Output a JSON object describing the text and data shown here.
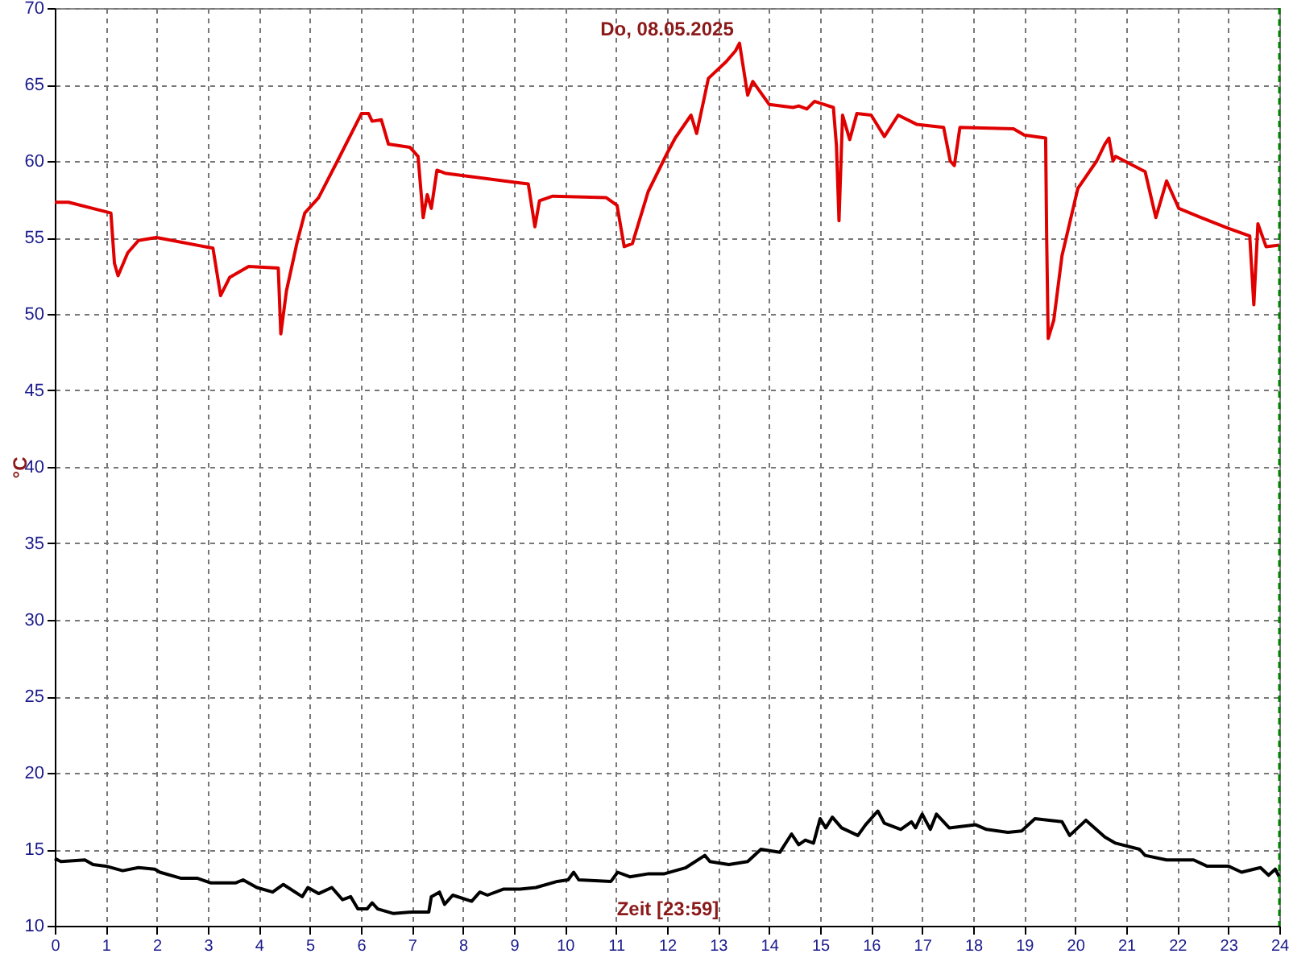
{
  "chart_data": {
    "type": "line",
    "title": "Do, 08.05.2025",
    "xlabel": "Zeit [23:59]",
    "ylabel": "°C",
    "xlim": [
      0,
      24
    ],
    "xticks": [
      0,
      1,
      2,
      3,
      4,
      5,
      6,
      7,
      8,
      9,
      10,
      11,
      12,
      13,
      14,
      15,
      16,
      17,
      18,
      19,
      20,
      21,
      22,
      23,
      24
    ],
    "ylim": [
      10,
      70
    ],
    "yticks": [
      10,
      15,
      20,
      25,
      30,
      35,
      40,
      45,
      50,
      55,
      60,
      65,
      70
    ],
    "grid": true,
    "line_style": "solid",
    "marker": "none",
    "ref_lines": [
      {
        "axis": "x",
        "value": 24,
        "label": null,
        "color": "#008000",
        "line_style": "dashed"
      }
    ],
    "series": [
      {
        "color": "#e00000",
        "x": [
          0,
          0.27,
          1.1,
          1.17,
          1.24,
          1.43,
          1.64,
          1.99,
          3.1,
          3.25,
          3.43,
          3.8,
          4.38,
          4.43,
          4.54,
          4.75,
          4.9,
          5.17,
          5.54,
          6.01,
          6.15,
          6.22,
          6.4,
          6.54,
          6.96,
          7.12,
          7.22,
          7.3,
          7.38,
          7.49,
          7.65,
          9.02,
          9.28,
          9.41,
          9.5,
          9.76,
          10.81,
          11.02,
          11.16,
          11.32,
          11.63,
          12.0,
          12.16,
          12.47,
          12.58,
          12.81,
          13.16,
          13.34,
          13.42,
          13.58,
          13.68,
          14.0,
          14.47,
          14.58,
          14.74,
          14.89,
          15.26,
          15.32,
          15.37,
          15.44,
          15.58,
          15.72,
          16.0,
          16.26,
          16.53,
          16.89,
          17.42,
          17.55,
          17.63,
          17.74,
          18.79,
          19.0,
          19.42,
          19.44,
          19.47,
          19.58,
          19.74,
          20.05,
          20.42,
          20.58,
          20.66,
          20.74,
          20.79,
          21.37,
          21.58,
          21.79,
          22.03,
          22.47,
          23.0,
          23.42,
          23.5,
          23.58,
          23.74,
          24.0
        ],
        "values": [
          57.3,
          57.3,
          56.6,
          53.3,
          52.5,
          54.0,
          54.8,
          55.0,
          54.3,
          51.2,
          52.4,
          53.1,
          53.0,
          48.7,
          51.5,
          54.7,
          56.6,
          57.6,
          60.0,
          63.1,
          63.1,
          62.6,
          62.7,
          61.1,
          60.9,
          60.3,
          56.3,
          57.8,
          56.9,
          59.4,
          59.2,
          58.6,
          58.5,
          55.7,
          57.4,
          57.7,
          57.6,
          57.1,
          54.4,
          54.6,
          58.0,
          60.5,
          61.5,
          63.0,
          61.8,
          65.4,
          66.5,
          67.2,
          67.7,
          64.3,
          65.2,
          63.7,
          63.5,
          63.6,
          63.4,
          63.9,
          63.5,
          61.0,
          56.1,
          63.0,
          61.4,
          63.1,
          63.0,
          61.6,
          63.0,
          62.4,
          62.2,
          60.0,
          59.7,
          62.2,
          62.1,
          61.7,
          61.5,
          55.0,
          48.4,
          49.6,
          53.8,
          58.2,
          60.0,
          61.1,
          61.5,
          60.0,
          60.3,
          59.3,
          56.3,
          58.7,
          56.9,
          56.3,
          55.6,
          55.1,
          50.6,
          55.9,
          54.4,
          54.5
        ]
      },
      {
        "color": "#000000",
        "x": [
          0,
          0.12,
          0.59,
          0.75,
          1.0,
          1.33,
          1.64,
          1.96,
          2.06,
          2.48,
          2.8,
          3.06,
          3.54,
          3.69,
          3.96,
          4.27,
          4.48,
          4.85,
          4.96,
          5.17,
          5.43,
          5.64,
          5.8,
          5.94,
          6.12,
          6.22,
          6.33,
          6.64,
          7.01,
          7.33,
          7.38,
          7.54,
          7.64,
          7.8,
          8.17,
          8.33,
          8.48,
          8.8,
          9.12,
          9.43,
          9.85,
          10.06,
          10.17,
          10.27,
          10.9,
          11.03,
          11.27,
          11.64,
          11.95,
          12.37,
          12.74,
          12.84,
          13.21,
          13.58,
          13.84,
          14.21,
          14.44,
          14.58,
          14.71,
          14.87,
          15.0,
          15.11,
          15.24,
          15.42,
          15.74,
          15.89,
          16.13,
          16.26,
          16.58,
          16.79,
          16.87,
          17.0,
          17.16,
          17.28,
          17.53,
          18.05,
          18.26,
          18.68,
          18.95,
          19.21,
          19.74,
          19.89,
          20.21,
          20.58,
          20.79,
          21.26,
          21.37,
          21.79,
          22.32,
          22.58,
          23.0,
          23.26,
          23.63,
          23.79,
          23.92,
          24.0
        ],
        "values": [
          14.4,
          14.2,
          14.3,
          14.0,
          13.9,
          13.6,
          13.8,
          13.7,
          13.5,
          13.1,
          13.1,
          12.8,
          12.8,
          13.0,
          12.5,
          12.2,
          12.7,
          11.9,
          12.5,
          12.1,
          12.5,
          11.7,
          11.9,
          11.1,
          11.1,
          11.5,
          11.1,
          10.8,
          10.9,
          10.9,
          11.9,
          12.2,
          11.4,
          12.0,
          11.6,
          12.2,
          12.0,
          12.4,
          12.4,
          12.5,
          12.9,
          13.0,
          13.5,
          13.0,
          12.9,
          13.5,
          13.2,
          13.4,
          13.4,
          13.8,
          14.6,
          14.2,
          14.0,
          14.2,
          15.0,
          14.8,
          16.0,
          15.3,
          15.6,
          15.4,
          17.0,
          16.4,
          17.1,
          16.4,
          15.9,
          16.6,
          17.5,
          16.7,
          16.3,
          16.8,
          16.4,
          17.3,
          16.3,
          17.3,
          16.4,
          16.6,
          16.3,
          16.1,
          16.2,
          17.0,
          16.8,
          15.9,
          16.9,
          15.8,
          15.4,
          15.0,
          14.6,
          14.3,
          14.3,
          13.9,
          13.9,
          13.5,
          13.8,
          13.3,
          13.7,
          13.2
        ]
      }
    ]
  }
}
